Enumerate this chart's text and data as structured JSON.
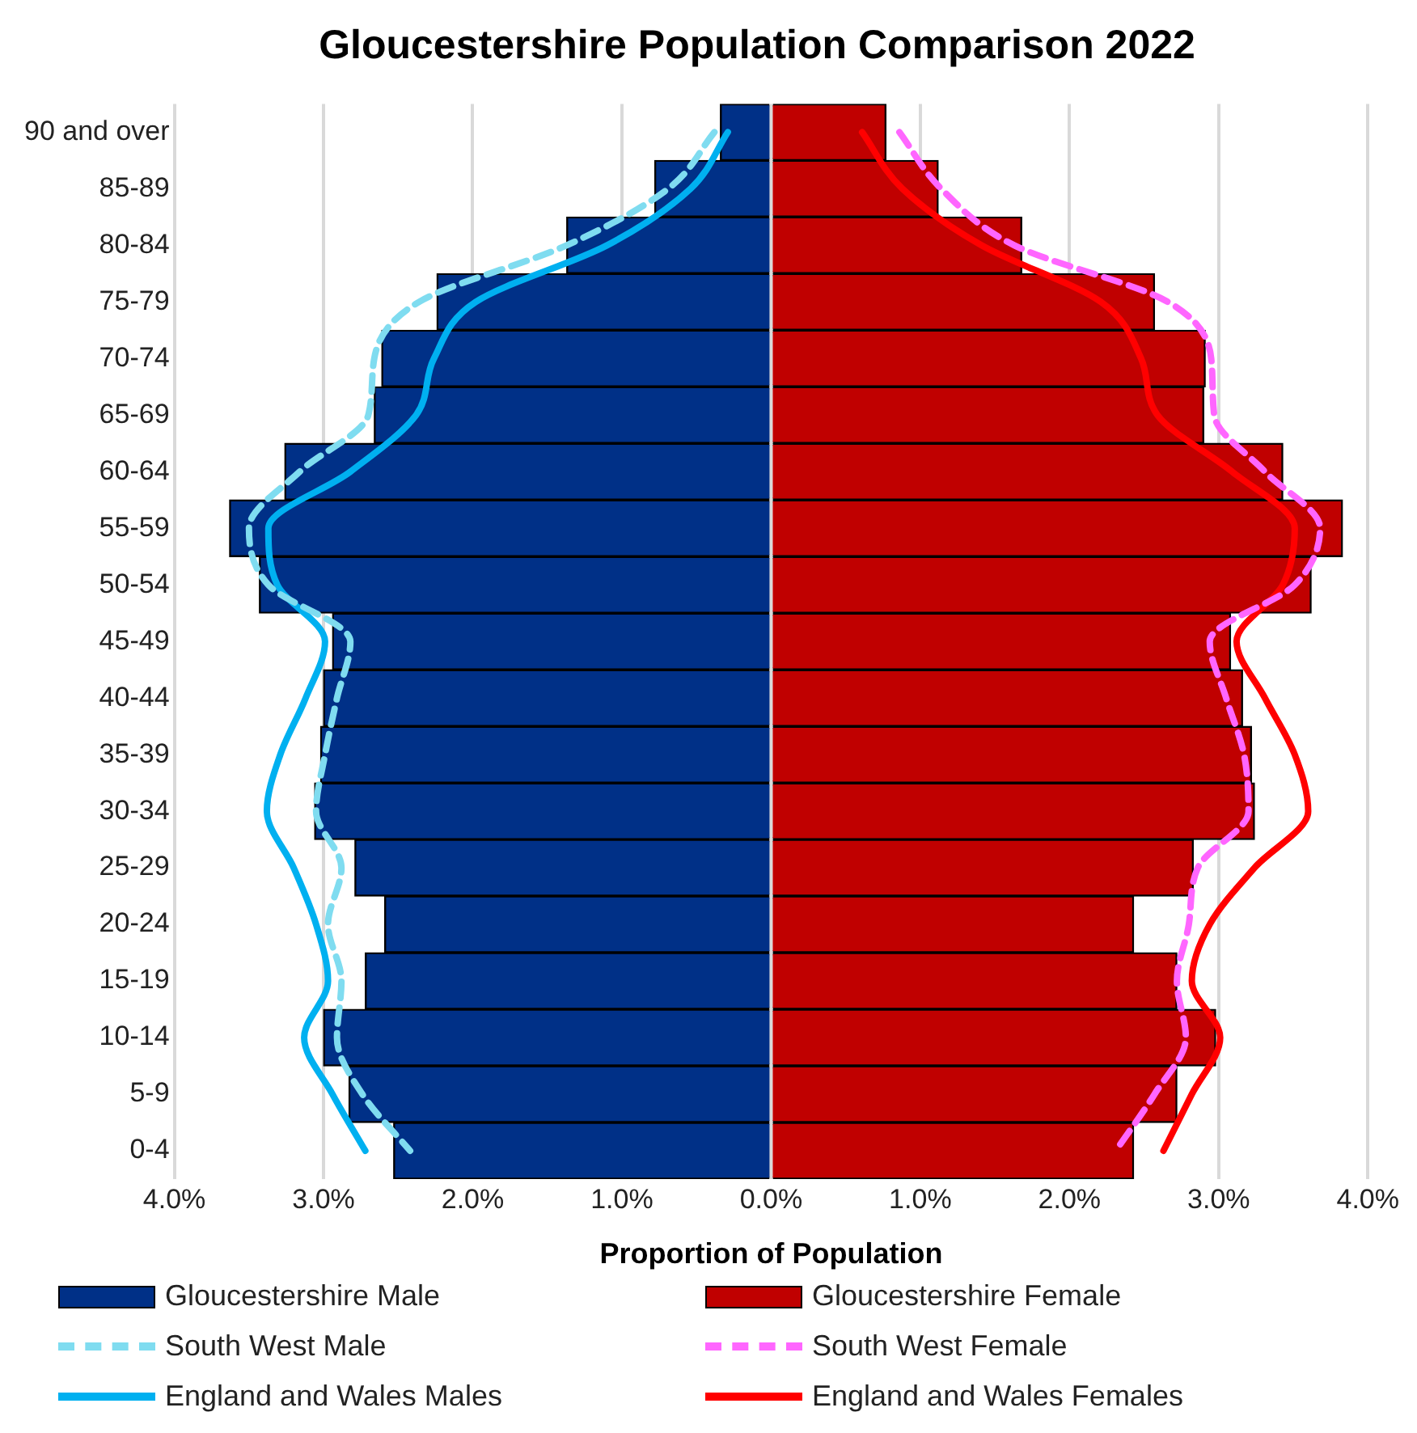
{
  "chart_data": {
    "type": "bar",
    "orientation": "horizontal",
    "stacked": true,
    "title": "Gloucestershire Population Comparison 2022",
    "xlabel": "Proportion of Population",
    "categories": [
      "90 and over",
      "85-89",
      "80-84",
      "75-79",
      "70-74",
      "65-69",
      "60-64",
      "55-59",
      "50-54",
      "45-49",
      "40-44",
      "35-39",
      "30-34",
      "25-29",
      "20-24",
      "15-19",
      "10-14",
      "5-9",
      "0-4"
    ],
    "series": [
      {
        "name": "Gloucestershire Male",
        "color": "#003087",
        "values": [
          -0.34,
          -0.78,
          -1.37,
          -2.24,
          -2.61,
          -2.66,
          -3.26,
          -3.63,
          -3.43,
          -2.94,
          -3.0,
          -3.02,
          -3.06,
          -2.79,
          -2.59,
          -2.72,
          -3.0,
          -2.83,
          -2.53
        ]
      },
      {
        "name": "Gloucestershire Female",
        "color": "#c00000",
        "values": [
          0.77,
          1.12,
          1.68,
          2.57,
          2.91,
          2.9,
          3.43,
          3.83,
          3.62,
          3.08,
          3.16,
          3.22,
          3.24,
          2.83,
          2.43,
          2.72,
          2.98,
          2.72,
          2.43
        ]
      },
      {
        "name": "South West Male",
        "type": "line",
        "line_style": "dashed",
        "color": "#7fdcf0",
        "values": [
          -0.38,
          -0.69,
          -1.37,
          -2.36,
          -2.66,
          -2.7,
          -3.16,
          -3.5,
          -3.37,
          -2.82,
          -2.91,
          -2.99,
          -3.05,
          -2.88,
          -2.97,
          -2.88,
          -2.91,
          -2.74,
          -2.42
        ]
      },
      {
        "name": "South West Female",
        "type": "line",
        "line_style": "dashed",
        "color": "#ff66ff",
        "values": [
          0.86,
          1.14,
          1.63,
          2.66,
          2.95,
          2.97,
          3.31,
          3.68,
          3.51,
          2.94,
          3.05,
          3.17,
          3.2,
          2.86,
          2.8,
          2.72,
          2.78,
          2.57,
          2.31
        ]
      },
      {
        "name": "England and Wales Males",
        "type": "line",
        "line_style": "solid",
        "color": "#00b0f0",
        "values": [
          -0.29,
          -0.54,
          -1.1,
          -1.98,
          -2.26,
          -2.38,
          -2.82,
          -3.37,
          -3.31,
          -2.99,
          -3.12,
          -3.29,
          -3.38,
          -3.2,
          -3.05,
          -2.97,
          -3.13,
          -2.94,
          -2.72
        ]
      },
      {
        "name": "England and Wales Females",
        "type": "line",
        "line_style": "solid",
        "color": "#ff0000",
        "values": [
          0.61,
          0.88,
          1.41,
          2.21,
          2.48,
          2.59,
          3.09,
          3.51,
          3.43,
          3.12,
          3.31,
          3.51,
          3.6,
          3.24,
          2.94,
          2.82,
          3.01,
          2.82,
          2.63
        ]
      }
    ],
    "xlim": [
      -4,
      4
    ],
    "xticks": [
      {
        "value": -4,
        "label": "4.0%"
      },
      {
        "value": -3,
        "label": "3.0%"
      },
      {
        "value": -2,
        "label": "2.0%"
      },
      {
        "value": -1,
        "label": "1.0%"
      },
      {
        "value": 0,
        "label": "0.0%"
      },
      {
        "value": 1,
        "label": "1.0%"
      },
      {
        "value": 2,
        "label": "2.0%"
      },
      {
        "value": 3,
        "label": "3.0%"
      },
      {
        "value": 4,
        "label": "4.0%"
      }
    ],
    "grid": "x",
    "legend": "bottom",
    "marker": "none"
  }
}
